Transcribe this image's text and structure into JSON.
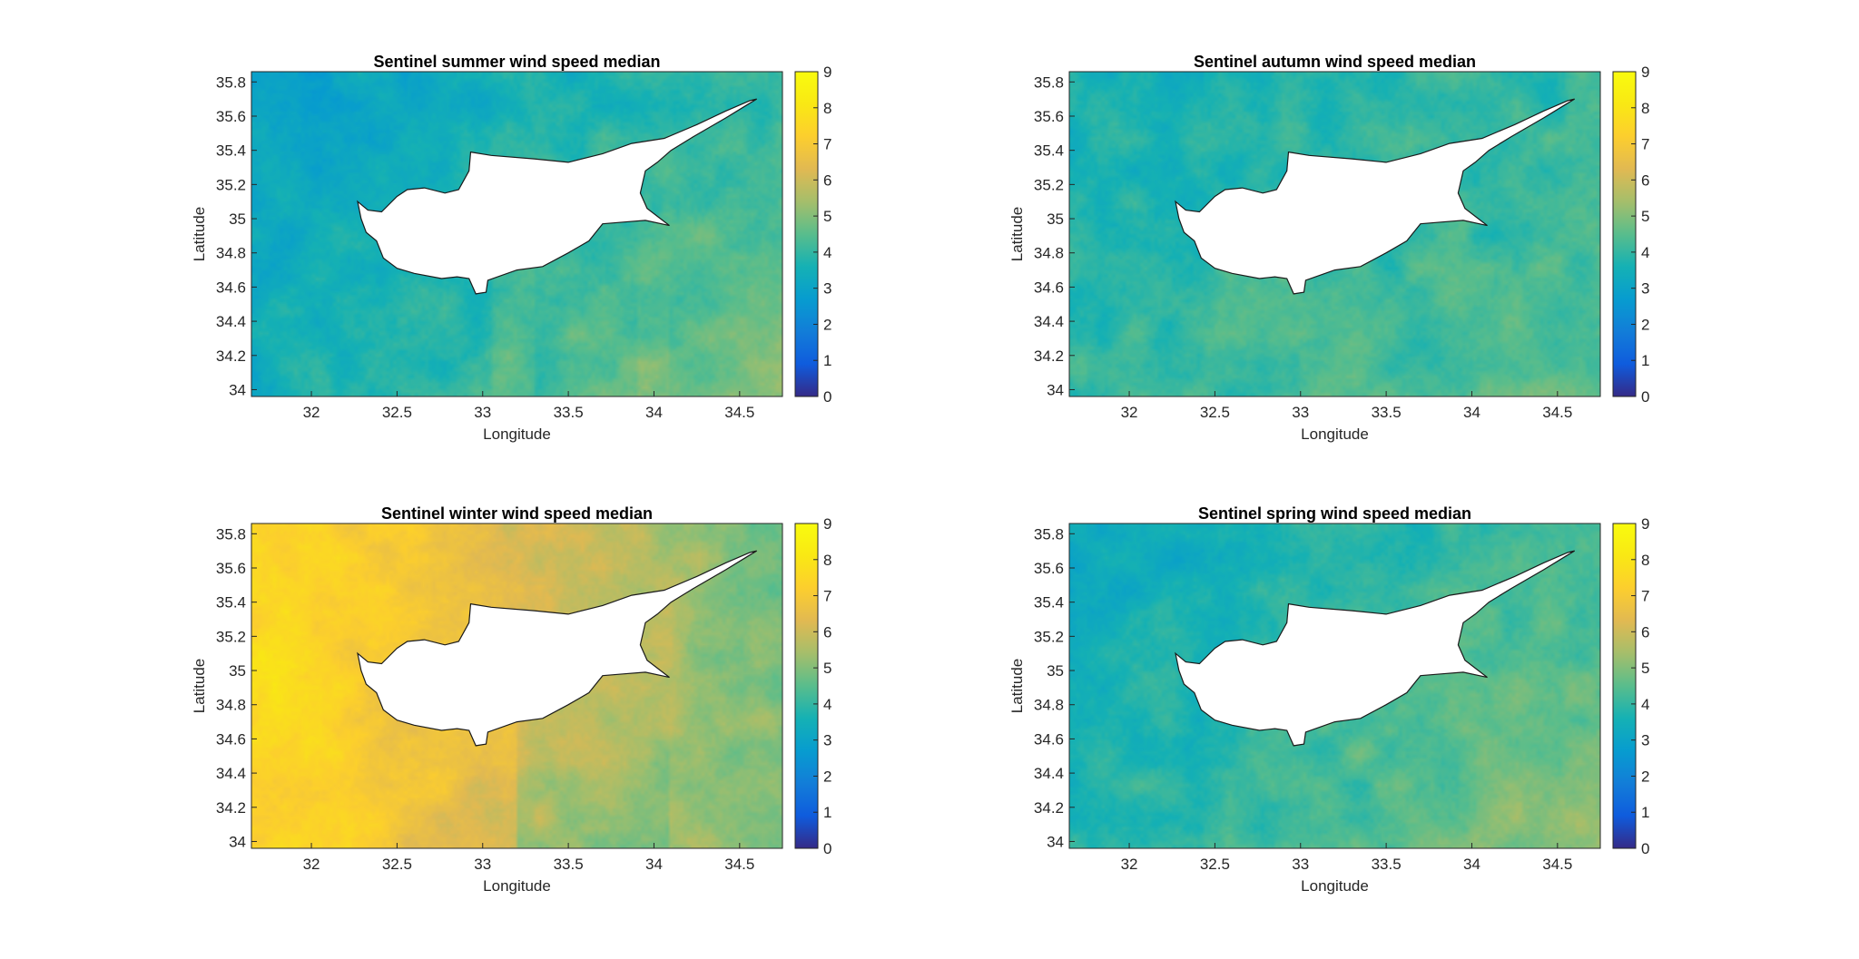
{
  "chart_data": [
    {
      "type": "heatmap",
      "title": "Sentinel summer wind speed median",
      "xlabel": "Longitude",
      "ylabel": "Latitude",
      "xlim": [
        31.65,
        34.75
      ],
      "ylim": [
        33.96,
        35.86
      ],
      "xticks": [
        "32",
        "32.5",
        "33",
        "33.5",
        "34",
        "34.5"
      ],
      "yticks": [
        "34",
        "34.2",
        "34.4",
        "34.6",
        "34.8",
        "35",
        "35.2",
        "35.4",
        "35.6",
        "35.8"
      ],
      "colorbar": {
        "min": 0,
        "max": 9,
        "ticks": [
          "0",
          "1",
          "2",
          "3",
          "4",
          "5",
          "6",
          "7",
          "8",
          "9"
        ],
        "colormap": "parula"
      },
      "field": {
        "base": 3.9,
        "west": -0.7,
        "northwest": -0.6,
        "east": 0.4,
        "south": 0.3,
        "southeast": 0.8
      },
      "swaths": [
        {
          "x": [
            33.05,
            33.3
          ],
          "value": 4.6
        },
        {
          "x": [
            33.9,
            34.1
          ],
          "value": 5.0
        }
      ],
      "land": "Cyprus"
    },
    {
      "type": "heatmap",
      "title": "Sentinel autumn wind speed median",
      "xlabel": "Longitude",
      "ylabel": "Latitude",
      "xlim": [
        31.65,
        34.75
      ],
      "ylim": [
        33.96,
        35.86
      ],
      "xticks": [
        "32",
        "32.5",
        "33",
        "33.5",
        "34",
        "34.5"
      ],
      "yticks": [
        "34",
        "34.2",
        "34.4",
        "34.6",
        "34.8",
        "35",
        "35.2",
        "35.4",
        "35.6",
        "35.8"
      ],
      "colorbar": {
        "min": 0,
        "max": 9,
        "ticks": [
          "0",
          "1",
          "2",
          "3",
          "4",
          "5",
          "6",
          "7",
          "8",
          "9"
        ],
        "colormap": "parula"
      },
      "field": {
        "base": 3.9,
        "west": -0.3,
        "northwest": -0.2,
        "east": 0.2,
        "south": 0.6,
        "southeast": 0.1
      },
      "swaths": [
        {
          "x": [
            33.9,
            34.1
          ],
          "value": 4.3
        }
      ],
      "land": "Cyprus"
    },
    {
      "type": "heatmap",
      "title": "Sentinel winter wind speed median",
      "xlabel": "Longitude",
      "ylabel": "Latitude",
      "xlim": [
        31.65,
        34.75
      ],
      "ylim": [
        33.96,
        35.86
      ],
      "xticks": [
        "32",
        "32.5",
        "33",
        "33.5",
        "34",
        "34.5"
      ],
      "yticks": [
        "34",
        "34.2",
        "34.4",
        "34.6",
        "34.8",
        "35",
        "35.2",
        "35.4",
        "35.6",
        "35.8"
      ],
      "colorbar": {
        "min": 0,
        "max": 9,
        "ticks": [
          "0",
          "1",
          "2",
          "3",
          "4",
          "5",
          "6",
          "7",
          "8",
          "9"
        ],
        "colormap": "parula"
      },
      "field": {
        "base": 5.2,
        "west": 1.8,
        "northwest": 1.6,
        "east": -0.7,
        "south": 1.0,
        "southeast": -0.6
      },
      "swaths": [
        {
          "x": [
            33.2,
            34.1
          ],
          "value": 4.6
        }
      ],
      "land": "Cyprus"
    },
    {
      "type": "heatmap",
      "title": "Sentinel spring wind speed median",
      "xlabel": "Longitude",
      "ylabel": "Latitude",
      "xlim": [
        31.65,
        34.75
      ],
      "ylim": [
        33.96,
        35.86
      ],
      "xticks": [
        "32",
        "32.5",
        "33",
        "33.5",
        "34",
        "34.5"
      ],
      "yticks": [
        "34",
        "34.2",
        "34.4",
        "34.6",
        "34.8",
        "35",
        "35.2",
        "35.4",
        "35.6",
        "35.8"
      ],
      "colorbar": {
        "min": 0,
        "max": 9,
        "ticks": [
          "0",
          "1",
          "2",
          "3",
          "4",
          "5",
          "6",
          "7",
          "8",
          "9"
        ],
        "colormap": "parula"
      },
      "field": {
        "base": 4.0,
        "west": -0.6,
        "northwest": -0.5,
        "east": 0.3,
        "south": 0.4,
        "southeast": 0.9
      },
      "swaths": [
        {
          "x": [
            33.85,
            34.1
          ],
          "value": 4.8
        }
      ],
      "land": "Cyprus"
    }
  ]
}
